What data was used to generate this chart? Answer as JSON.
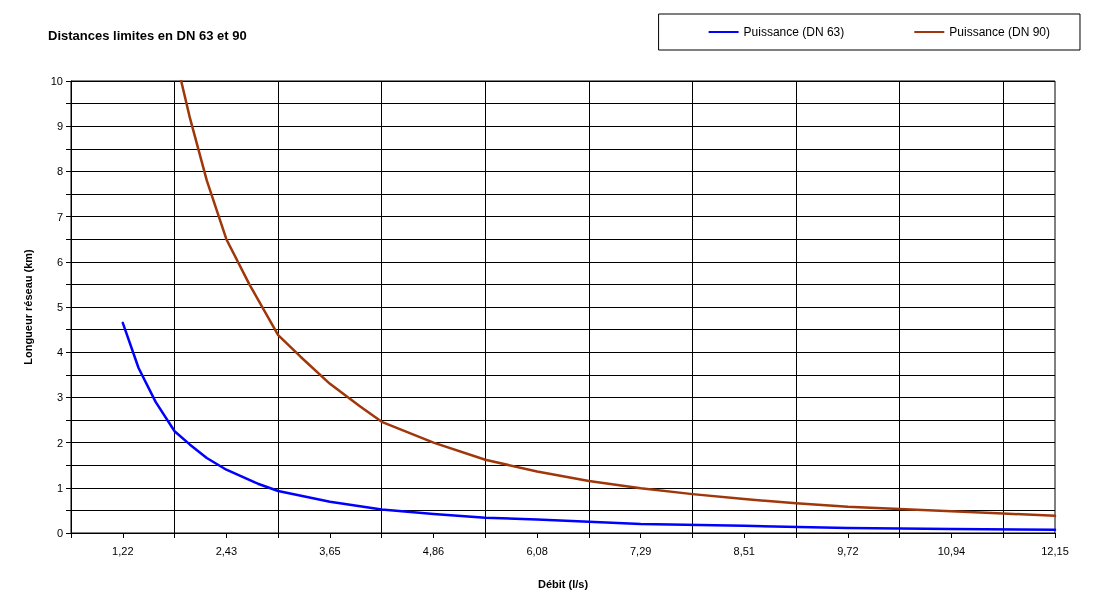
{
  "chart_data": {
    "type": "line",
    "title": "Distances limites en DN 63 et 90",
    "xlabel": "Débit (l/s)",
    "ylabel": "Longueur réseau (km)",
    "xlim": [
      0.6075,
      12.15
    ],
    "ylim": [
      0,
      10
    ],
    "xticks": [
      {
        "value": 0.6075,
        "label": null
      },
      {
        "value": 1.215,
        "label": "1,22"
      },
      {
        "value": 1.8225,
        "label": null
      },
      {
        "value": 2.43,
        "label": "2,43"
      },
      {
        "value": 3.0375,
        "label": null
      },
      {
        "value": 3.645,
        "label": "3,65"
      },
      {
        "value": 4.2525,
        "label": null
      },
      {
        "value": 4.86,
        "label": "4,86"
      },
      {
        "value": 5.4675,
        "label": null
      },
      {
        "value": 6.075,
        "label": "6,08"
      },
      {
        "value": 6.6825,
        "label": null
      },
      {
        "value": 7.29,
        "label": "7,29"
      },
      {
        "value": 7.8975,
        "label": null
      },
      {
        "value": 8.505,
        "label": "8,51"
      },
      {
        "value": 9.1125,
        "label": null
      },
      {
        "value": 9.72,
        "label": "9,72"
      },
      {
        "value": 10.3275,
        "label": null
      },
      {
        "value": 10.935,
        "label": "10,94"
      },
      {
        "value": 11.5425,
        "label": null
      },
      {
        "value": 12.15,
        "label": "12,15"
      }
    ],
    "yticks": [
      0,
      {
        "value": 0.5,
        "label": null
      },
      1,
      {
        "value": 1.5,
        "label": null
      },
      2,
      {
        "value": 2.5,
        "label": null
      },
      3,
      {
        "value": 3.5,
        "label": null
      },
      4,
      {
        "value": 4.5,
        "label": null
      },
      5,
      {
        "value": 5.5,
        "label": null
      },
      6,
      {
        "value": 6.5,
        "label": null
      },
      7,
      {
        "value": 7.5,
        "label": null
      },
      8,
      {
        "value": 8.5,
        "label": null
      },
      9,
      {
        "value": 9.5,
        "label": null
      },
      10
    ],
    "grid": true,
    "legend": "top right",
    "marker": "none",
    "line_style": "solid",
    "series": [
      {
        "name": "Puissance (DN 63)",
        "color": "#0000ff",
        "x": [
          1.215,
          1.4,
          1.6,
          1.8225,
          2.0,
          2.2,
          2.43,
          2.8,
          3.0375,
          3.645,
          4.2525,
          4.86,
          5.4675,
          6.075,
          7.29,
          8.505,
          9.72,
          10.935,
          12.15
        ],
        "values": [
          4.65,
          3.65,
          2.9,
          2.25,
          1.96,
          1.66,
          1.4,
          1.09,
          0.93,
          0.69,
          0.52,
          0.42,
          0.34,
          0.3,
          0.2,
          0.16,
          0.11,
          0.09,
          0.07
        ]
      },
      {
        "name": "Puissance (DN 90)",
        "color": "#a0370a",
        "x": [
          1.9,
          2.0,
          2.2,
          2.43,
          2.7,
          3.0375,
          3.3,
          3.645,
          4.0,
          4.2525,
          4.86,
          5.4675,
          6.075,
          6.6825,
          7.29,
          7.8975,
          8.505,
          9.1125,
          9.72,
          10.3275,
          10.935,
          11.5425,
          12.15
        ],
        "values": [
          10,
          9.2,
          7.8,
          6.5,
          5.5,
          4.38,
          3.9,
          3.3,
          2.8,
          2.46,
          2.0,
          1.62,
          1.36,
          1.15,
          0.99,
          0.86,
          0.75,
          0.66,
          0.58,
          0.53,
          0.48,
          0.43,
          0.38
        ]
      }
    ]
  }
}
